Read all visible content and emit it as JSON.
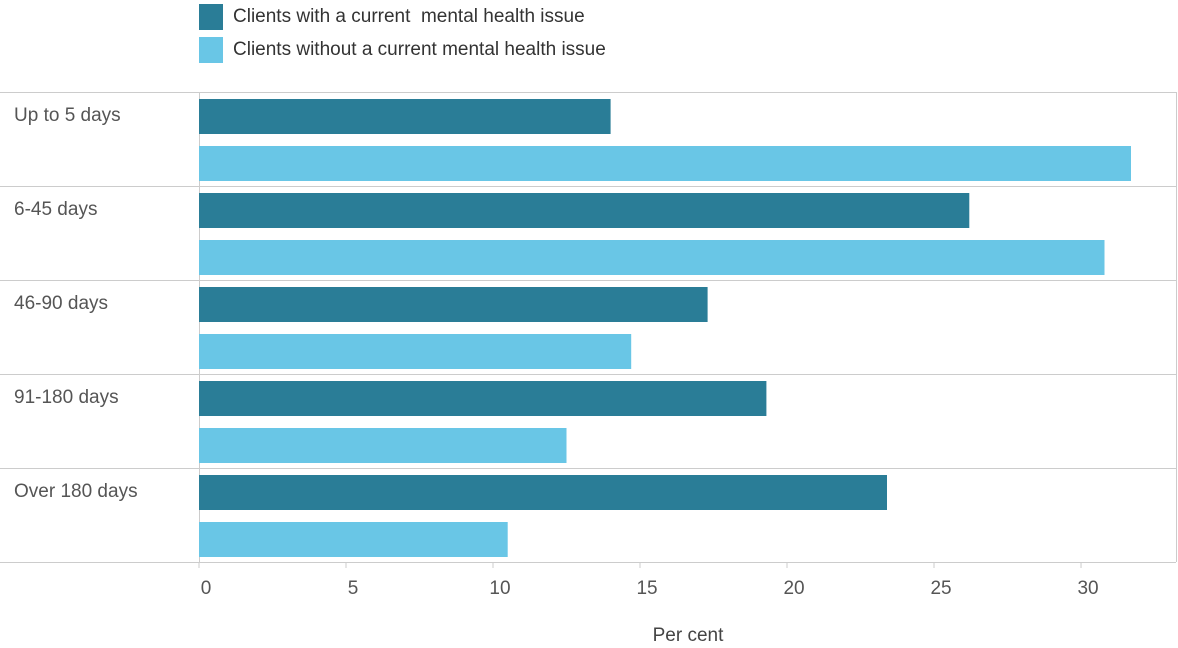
{
  "chart_data": {
    "type": "bar",
    "orientation": "horizontal",
    "categories": [
      "Up to 5 days",
      "6-45 days",
      "46-90 days",
      "91-180 days",
      "Over 180 days"
    ],
    "series": [
      {
        "name": "Clients with a current  mental health issue",
        "color": "#2a7d97",
        "values": [
          14.0,
          26.2,
          17.3,
          19.3,
          23.4
        ]
      },
      {
        "name": "Clients without a current mental health issue",
        "color": "#69c6e6",
        "values": [
          31.7,
          30.8,
          14.7,
          12.5,
          10.5
        ]
      }
    ],
    "xlabel": "Per cent",
    "xlim": [
      0,
      33
    ],
    "xticks": [
      0,
      5,
      10,
      15,
      20,
      25,
      30
    ],
    "grid": false,
    "legend_position": "top-left"
  }
}
